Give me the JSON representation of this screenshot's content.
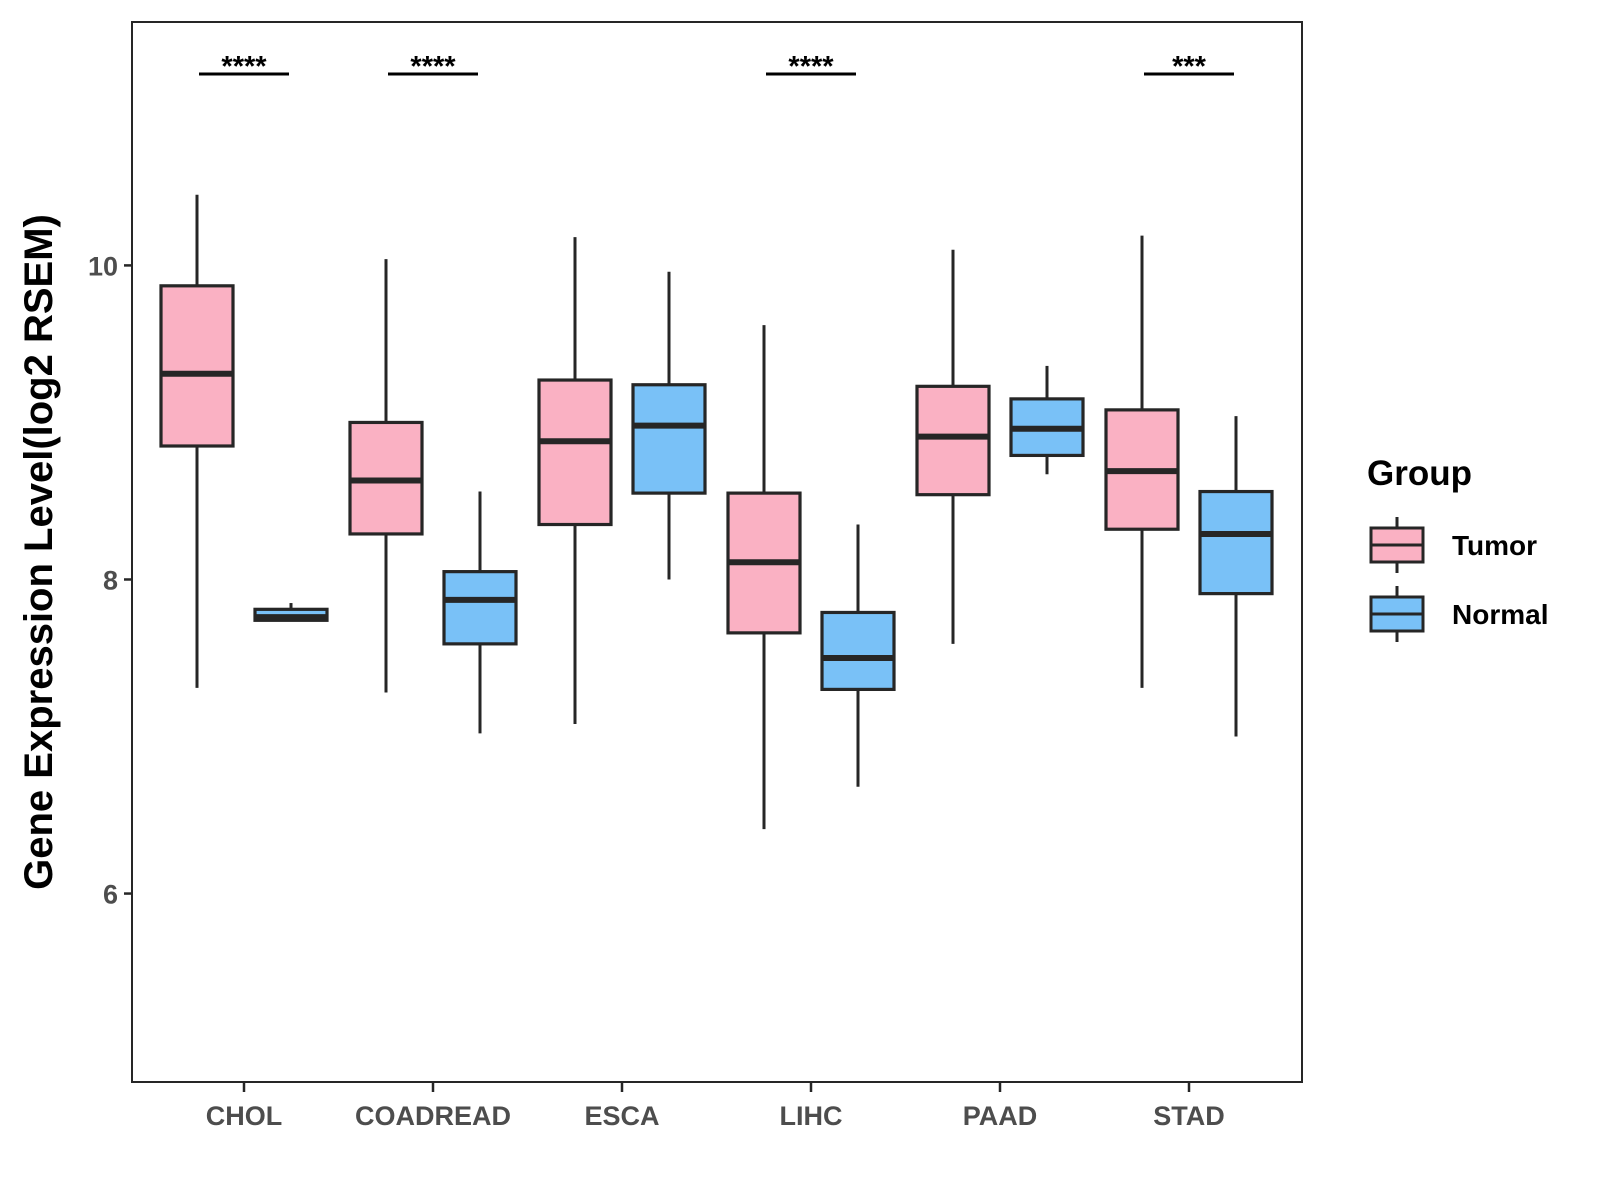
{
  "chart_data": {
    "type": "boxplot",
    "title": "",
    "xlabel": "",
    "ylabel": "Gene Expression Level(log2 RSEM)",
    "ylim": [
      4.8,
      11.55
    ],
    "yticks": [
      6,
      8,
      10
    ],
    "ytick_labels": [
      "6",
      "8",
      "10"
    ],
    "categories": [
      "CHOL",
      "COADREAD",
      "ESCA",
      "LIHC",
      "PAAD",
      "STAD"
    ],
    "legend": {
      "title": "Group",
      "position": "right",
      "entries": [
        "Tumor",
        "Normal"
      ]
    },
    "series": [
      {
        "name": "Tumor",
        "color": "#fab1c3",
        "boxes": [
          {
            "whisker_low": 7.31,
            "q1": 8.85,
            "median": 9.31,
            "q3": 9.87,
            "whisker_high": 10.45
          },
          {
            "whisker_low": 7.28,
            "q1": 8.29,
            "median": 8.63,
            "q3": 9.0,
            "whisker_high": 10.04
          },
          {
            "whisker_low": 7.08,
            "q1": 8.35,
            "median": 8.88,
            "q3": 9.27,
            "whisker_high": 10.18
          },
          {
            "whisker_low": 6.41,
            "q1": 7.66,
            "median": 8.11,
            "q3": 8.55,
            "whisker_high": 9.62
          },
          {
            "whisker_low": 7.59,
            "q1": 8.54,
            "median": 8.91,
            "q3": 9.23,
            "whisker_high": 10.1
          },
          {
            "whisker_low": 7.31,
            "q1": 8.32,
            "median": 8.69,
            "q3": 9.08,
            "whisker_high": 10.19
          }
        ]
      },
      {
        "name": "Normal",
        "color": "#79c1f7",
        "boxes": [
          {
            "whisker_low": 7.74,
            "q1": 7.74,
            "median": 7.76,
            "q3": 7.81,
            "whisker_high": 7.85
          },
          {
            "whisker_low": 7.02,
            "q1": 7.59,
            "median": 7.87,
            "q3": 8.05,
            "whisker_high": 8.56
          },
          {
            "whisker_low": 8.0,
            "q1": 8.55,
            "median": 8.98,
            "q3": 9.24,
            "whisker_high": 9.96
          },
          {
            "whisker_low": 6.68,
            "q1": 7.3,
            "median": 7.5,
            "q3": 7.79,
            "whisker_high": 8.35
          },
          {
            "whisker_low": 8.67,
            "q1": 8.79,
            "median": 8.96,
            "q3": 9.15,
            "whisker_high": 9.36
          },
          {
            "whisker_low": 7.0,
            "q1": 7.91,
            "median": 8.29,
            "q3": 8.56,
            "whisker_high": 9.04
          }
        ]
      }
    ],
    "significance": [
      {
        "category": "CHOL",
        "label": "****"
      },
      {
        "category": "COADREAD",
        "label": "****"
      },
      {
        "category": "LIHC",
        "label": "****"
      },
      {
        "category": "STAD",
        "label": "***"
      }
    ]
  }
}
